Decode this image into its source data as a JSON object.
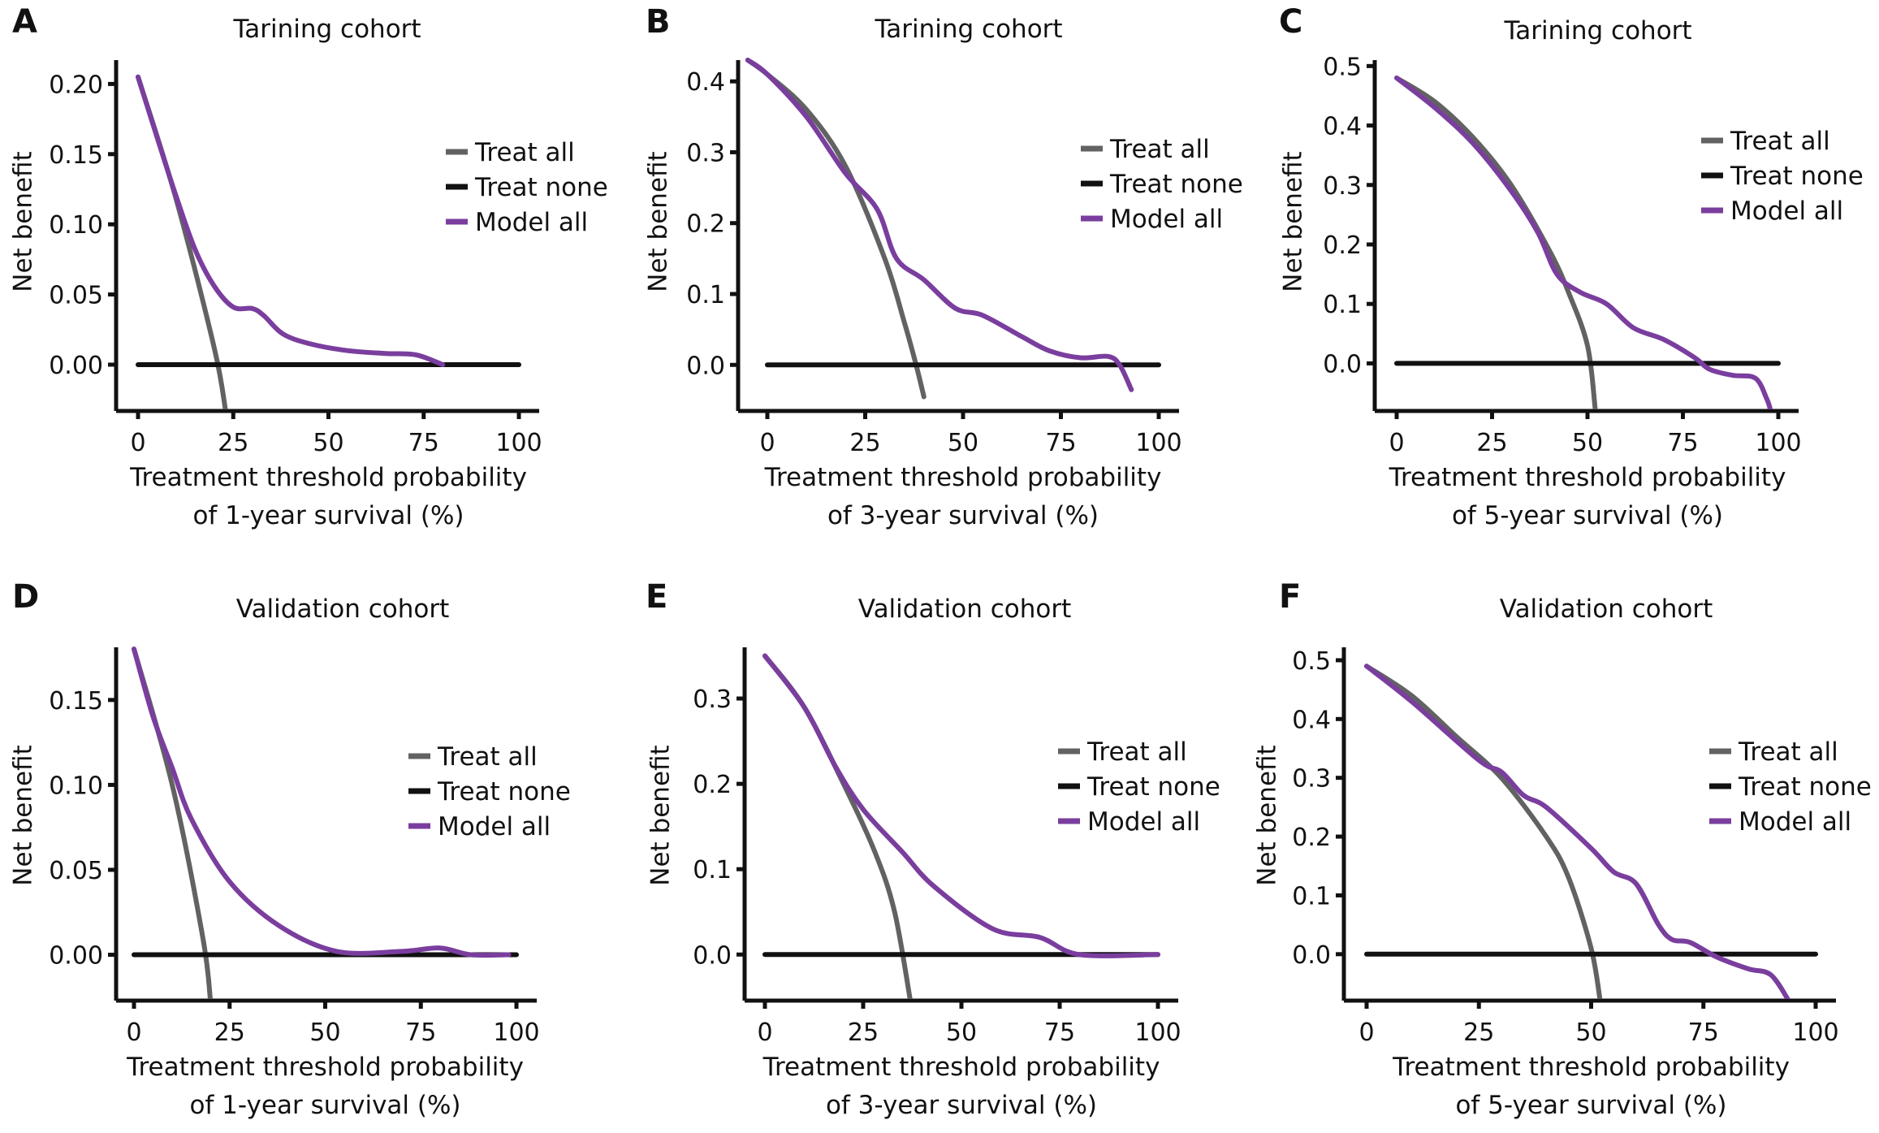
{
  "colors": {
    "treat_all": "#626262",
    "treat_none": "#111111",
    "model_all": "#7a3e9e",
    "axis": "#111111"
  },
  "chart_data": [
    {
      "panel": "A",
      "type": "line",
      "title": "Tarining cohort",
      "ylabel": "Net benefit",
      "xlabel": [
        "Treatment threshold probability",
        "of 1-year survival (%)"
      ],
      "xlim": [
        0,
        100
      ],
      "ylim": [
        -0.033,
        0.217
      ],
      "xticks": [
        0,
        25,
        50,
        75,
        100
      ],
      "yticks": [
        0,
        0.05,
        0.1,
        0.15,
        0.2
      ],
      "ytick_labels": [
        "0.00",
        "0.05",
        "0.10",
        "0.15",
        "0.20"
      ],
      "legend": "right",
      "grid": false,
      "series": [
        {
          "name": "Treat all",
          "color_key": "treat_all",
          "x": [
            0,
            10,
            20,
            23
          ],
          "y": [
            0.205,
            0.118,
            0.012,
            -0.033
          ]
        },
        {
          "name": "Treat none",
          "color_key": "treat_none",
          "x": [
            0,
            100
          ],
          "y": [
            0,
            0
          ]
        },
        {
          "name": "Model all",
          "color_key": "model_all",
          "x": [
            0,
            5,
            10,
            15,
            20,
            25,
            30,
            33,
            38,
            45,
            55,
            65,
            73,
            80
          ],
          "y": [
            0.205,
            0.162,
            0.12,
            0.082,
            0.056,
            0.041,
            0.04,
            0.035,
            0.022,
            0.015,
            0.01,
            0.008,
            0.007,
            0
          ]
        }
      ]
    },
    {
      "panel": "B",
      "type": "line",
      "title": "Tarining cohort",
      "ylabel": "Net benefit",
      "xlabel": [
        "Treatment threshold probability",
        "of 3-year survival (%)"
      ],
      "xlim": [
        0,
        100
      ],
      "ylim": [
        -0.065,
        0.43
      ],
      "xticks": [
        0,
        25,
        50,
        75,
        100
      ],
      "yticks": [
        0,
        0.1,
        0.2,
        0.3,
        0.4
      ],
      "ytick_labels": [
        "0.0",
        "0.1",
        "0.2",
        "0.3",
        "0.4"
      ],
      "legend": "right",
      "grid": false,
      "series": [
        {
          "name": "Treat all",
          "color_key": "treat_all",
          "x": [
            -5,
            0,
            10,
            20,
            30,
            35,
            38,
            40
          ],
          "y": [
            0.43,
            0.41,
            0.36,
            0.28,
            0.15,
            0.06,
            0.0,
            -0.045
          ]
        },
        {
          "name": "Treat none",
          "color_key": "treat_none",
          "x": [
            0,
            100
          ],
          "y": [
            0,
            0
          ]
        },
        {
          "name": "Model all",
          "color_key": "model_all",
          "x": [
            -5,
            0,
            10,
            20,
            28,
            33,
            40,
            48,
            55,
            65,
            72,
            80,
            87,
            90,
            93
          ],
          "y": [
            0.43,
            0.41,
            0.35,
            0.27,
            0.22,
            0.15,
            0.12,
            0.08,
            0.07,
            0.04,
            0.02,
            0.01,
            0.012,
            0.0,
            -0.035
          ]
        }
      ]
    },
    {
      "panel": "C",
      "type": "line",
      "title": "Tarining cohort",
      "ylabel": "Net benefit",
      "xlabel": [
        "Treatment threshold probability",
        "of 5-year survival (%)"
      ],
      "xlim": [
        0,
        100
      ],
      "ylim": [
        -0.08,
        0.51
      ],
      "xticks": [
        0,
        25,
        50,
        75,
        100
      ],
      "yticks": [
        0,
        0.1,
        0.2,
        0.3,
        0.4,
        0.5
      ],
      "ytick_labels": [
        "0.0",
        "0.1",
        "0.2",
        "0.3",
        "0.4",
        "0.5"
      ],
      "legend": "right",
      "grid": false,
      "series": [
        {
          "name": "Treat all",
          "color_key": "treat_all",
          "x": [
            0,
            10,
            20,
            30,
            40,
            45,
            50,
            52
          ],
          "y": [
            0.48,
            0.44,
            0.38,
            0.3,
            0.19,
            0.12,
            0.03,
            -0.075
          ]
        },
        {
          "name": "Treat none",
          "color_key": "treat_none",
          "x": [
            0,
            100
          ],
          "y": [
            0,
            0
          ]
        },
        {
          "name": "Model all",
          "color_key": "model_all",
          "x": [
            0,
            10,
            20,
            30,
            37,
            42,
            48,
            55,
            62,
            70,
            78,
            82,
            88,
            94,
            97,
            98
          ],
          "y": [
            0.48,
            0.43,
            0.37,
            0.29,
            0.22,
            0.15,
            0.12,
            0.1,
            0.06,
            0.04,
            0.01,
            -0.01,
            -0.02,
            -0.025,
            -0.06,
            -0.08
          ]
        }
      ]
    },
    {
      "panel": "D",
      "type": "line",
      "title": "Validation cohort",
      "ylabel": "Net benefit",
      "xlabel": [
        "Treatment threshold probability",
        "of 1-year survival (%)"
      ],
      "xlim": [
        0,
        100
      ],
      "ylim": [
        -0.027,
        0.181
      ],
      "xticks": [
        0,
        25,
        50,
        75,
        100
      ],
      "yticks": [
        0,
        0.05,
        0.1,
        0.15
      ],
      "ytick_labels": [
        "0.00",
        "0.05",
        "0.10",
        "0.15"
      ],
      "legend": "right",
      "grid": false,
      "series": [
        {
          "name": "Treat all",
          "color_key": "treat_all",
          "x": [
            0,
            10,
            18,
            20
          ],
          "y": [
            0.18,
            0.1,
            0.01,
            -0.027
          ]
        },
        {
          "name": "Treat none",
          "color_key": "treat_none",
          "x": [
            0,
            100
          ],
          "y": [
            0,
            0
          ]
        },
        {
          "name": "Model all",
          "color_key": "model_all",
          "x": [
            0,
            5,
            10,
            15,
            25,
            38,
            53,
            70,
            80,
            88,
            98
          ],
          "y": [
            0.18,
            0.14,
            0.11,
            0.08,
            0.043,
            0.017,
            0.002,
            0.002,
            0.004,
            0,
            0
          ]
        }
      ]
    },
    {
      "panel": "E",
      "type": "line",
      "title": "Validation cohort",
      "ylabel": "Net benefit",
      "xlabel": [
        "Treatment threshold probability",
        "of 3-year survival (%)"
      ],
      "xlim": [
        0,
        100
      ],
      "ylim": [
        -0.054,
        0.36
      ],
      "xticks": [
        0,
        25,
        50,
        75,
        100
      ],
      "yticks": [
        0,
        0.1,
        0.2,
        0.3
      ],
      "ytick_labels": [
        "0.0",
        "0.1",
        "0.2",
        "0.3"
      ],
      "legend": "right",
      "grid": false,
      "series": [
        {
          "name": "Treat all",
          "color_key": "treat_all",
          "x": [
            0,
            10,
            20,
            28,
            33,
            37
          ],
          "y": [
            0.35,
            0.29,
            0.2,
            0.12,
            0.05,
            -0.054
          ]
        },
        {
          "name": "Treat none",
          "color_key": "treat_none",
          "x": [
            0,
            100
          ],
          "y": [
            0,
            0
          ]
        },
        {
          "name": "Model all",
          "color_key": "model_all",
          "x": [
            0,
            10,
            18,
            25,
            35,
            43,
            58,
            70,
            80,
            100
          ],
          "y": [
            0.35,
            0.29,
            0.22,
            0.17,
            0.12,
            0.08,
            0.03,
            0.02,
            0,
            0
          ]
        }
      ]
    },
    {
      "panel": "F",
      "type": "line",
      "title": "Validation cohort",
      "ylabel": "Net benefit",
      "xlabel": [
        "Treatment threshold probability",
        "of 5-year survival (%)"
      ],
      "xlim": [
        0,
        100
      ],
      "ylim": [
        -0.079,
        0.522
      ],
      "xticks": [
        0,
        25,
        50,
        75,
        100
      ],
      "yticks": [
        0,
        0.1,
        0.2,
        0.3,
        0.4,
        0.5
      ],
      "ytick_labels": [
        "0.0",
        "0.1",
        "0.2",
        "0.3",
        "0.4",
        "0.5"
      ],
      "legend": "right",
      "grid": false,
      "series": [
        {
          "name": "Treat all",
          "color_key": "treat_all",
          "x": [
            0,
            10,
            20,
            30,
            40,
            45,
            50,
            52
          ],
          "y": [
            0.49,
            0.44,
            0.37,
            0.3,
            0.2,
            0.13,
            0.01,
            -0.079
          ]
        },
        {
          "name": "Treat none",
          "color_key": "treat_none",
          "x": [
            0,
            100
          ],
          "y": [
            0,
            0
          ]
        },
        {
          "name": "Model all",
          "color_key": "model_all",
          "x": [
            0,
            10,
            25,
            30,
            35,
            40,
            50,
            55,
            60,
            65,
            68,
            72,
            78,
            85,
            90,
            94
          ],
          "y": [
            0.49,
            0.43,
            0.33,
            0.31,
            0.27,
            0.25,
            0.18,
            0.14,
            0.12,
            0.05,
            0.025,
            0.02,
            -0.005,
            -0.025,
            -0.035,
            -0.079
          ]
        }
      ]
    }
  ]
}
